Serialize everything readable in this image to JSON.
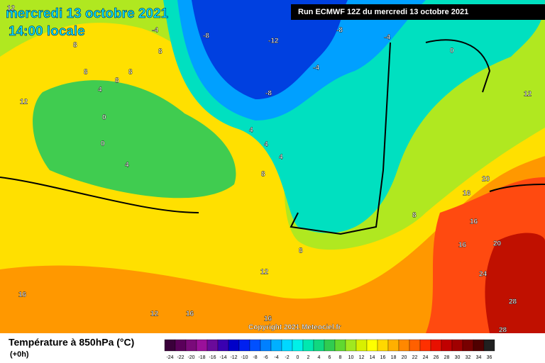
{
  "header": {
    "date": "mercredi 13 octobre 2021",
    "time": "14:00 locale",
    "run": "Run ECMWF 12Z du mercredi 13 octobre 2021"
  },
  "map": {
    "contour_labels": [
      "12",
      "-4",
      "-8",
      "8",
      "8",
      "-12",
      "-8",
      "-4",
      "-4",
      "8",
      "8",
      "8",
      "-8",
      "4",
      "12",
      "0",
      "0",
      "12",
      "0",
      "4",
      "4",
      "4",
      "4",
      "8",
      "8",
      "16",
      "20",
      "16",
      "16",
      "20",
      "8",
      "12",
      "24",
      "16",
      "12",
      "16",
      "16",
      "28",
      "28"
    ],
    "copyright": "Copyright 2021 Meteociel.fr"
  },
  "footer": {
    "title": "Température à 850hPa (°C)",
    "lead": "(+0h)",
    "scale": {
      "labels": [
        -24,
        -22,
        -20,
        -18,
        -16,
        -14,
        -12,
        -10,
        -8,
        -6,
        -4,
        -2,
        0,
        2,
        4,
        6,
        8,
        10,
        12,
        14,
        16,
        18,
        20,
        22,
        24,
        26,
        28,
        30,
        32,
        34,
        36
      ],
      "colors": [
        "#3a003a",
        "#5a005a",
        "#7a0a7a",
        "#9a109a",
        "#6a0a9a",
        "#3a00b0",
        "#0000c8",
        "#0020f0",
        "#0050ff",
        "#0080ff",
        "#00b0ff",
        "#00d8ff",
        "#00f0e8",
        "#00e8b0",
        "#10d880",
        "#30cc50",
        "#60d830",
        "#a0e820",
        "#d8f000",
        "#ffff00",
        "#ffd800",
        "#ffb000",
        "#ff8800",
        "#ff6000",
        "#ff3000",
        "#e81000",
        "#c00000",
        "#a00000",
        "#780000",
        "#500000",
        "#202020"
      ]
    }
  }
}
